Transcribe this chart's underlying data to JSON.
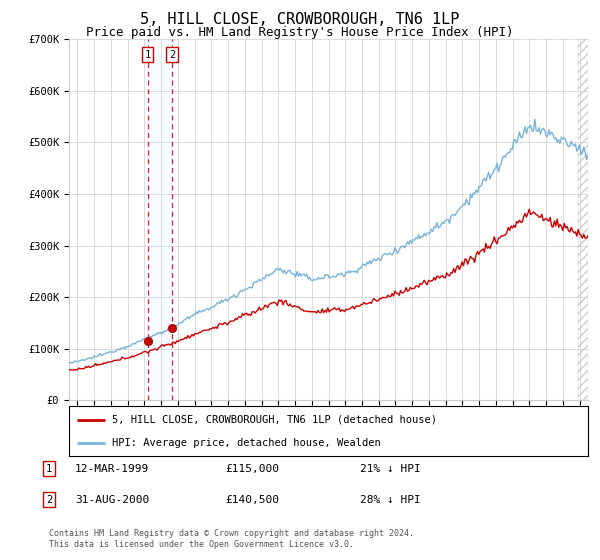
{
  "title": "5, HILL CLOSE, CROWBOROUGH, TN6 1LP",
  "subtitle": "Price paid vs. HM Land Registry's House Price Index (HPI)",
  "title_fontsize": 11,
  "subtitle_fontsize": 9,
  "ylim": [
    0,
    700000
  ],
  "yticks": [
    0,
    100000,
    200000,
    300000,
    400000,
    500000,
    600000,
    700000
  ],
  "ytick_labels": [
    "£0",
    "£100K",
    "£200K",
    "£300K",
    "£400K",
    "£500K",
    "£600K",
    "£700K"
  ],
  "xlim_start": 1994.5,
  "xlim_end": 2025.5,
  "xticks": [
    1995,
    1996,
    1997,
    1998,
    1999,
    2000,
    2001,
    2002,
    2003,
    2004,
    2005,
    2006,
    2007,
    2008,
    2009,
    2010,
    2011,
    2012,
    2013,
    2014,
    2015,
    2016,
    2017,
    2018,
    2019,
    2020,
    2021,
    2022,
    2023,
    2024,
    2025
  ],
  "background_color": "#ffffff",
  "grid_color": "#cccccc",
  "hpi_color": "#7ab3d9",
  "price_color": "#cc0000",
  "annotation_box_color": "#cc0000",
  "vline_color": "#cc0000",
  "vline_shade_color": "#ddeeff",
  "hatch_color": "#cccccc",
  "purchases": [
    {
      "date_label": "12-MAR-1999",
      "date_num": 1999.19,
      "price": 115000,
      "idx": 1
    },
    {
      "date_label": "31-AUG-2000",
      "date_num": 2000.66,
      "price": 140500,
      "idx": 2
    }
  ],
  "legend_line1": "5, HILL CLOSE, CROWBOROUGH, TN6 1LP (detached house)",
  "legend_line2": "HPI: Average price, detached house, Wealden",
  "footer": "Contains HM Land Registry data © Crown copyright and database right 2024.\nThis data is licensed under the Open Government Licence v3.0.",
  "table_rows": [
    {
      "idx": 1,
      "date": "12-MAR-1999",
      "price": "£115,000",
      "pct": "21% ↓ HPI"
    },
    {
      "idx": 2,
      "date": "31-AUG-2000",
      "price": "£140,500",
      "pct": "28% ↓ HPI"
    }
  ]
}
